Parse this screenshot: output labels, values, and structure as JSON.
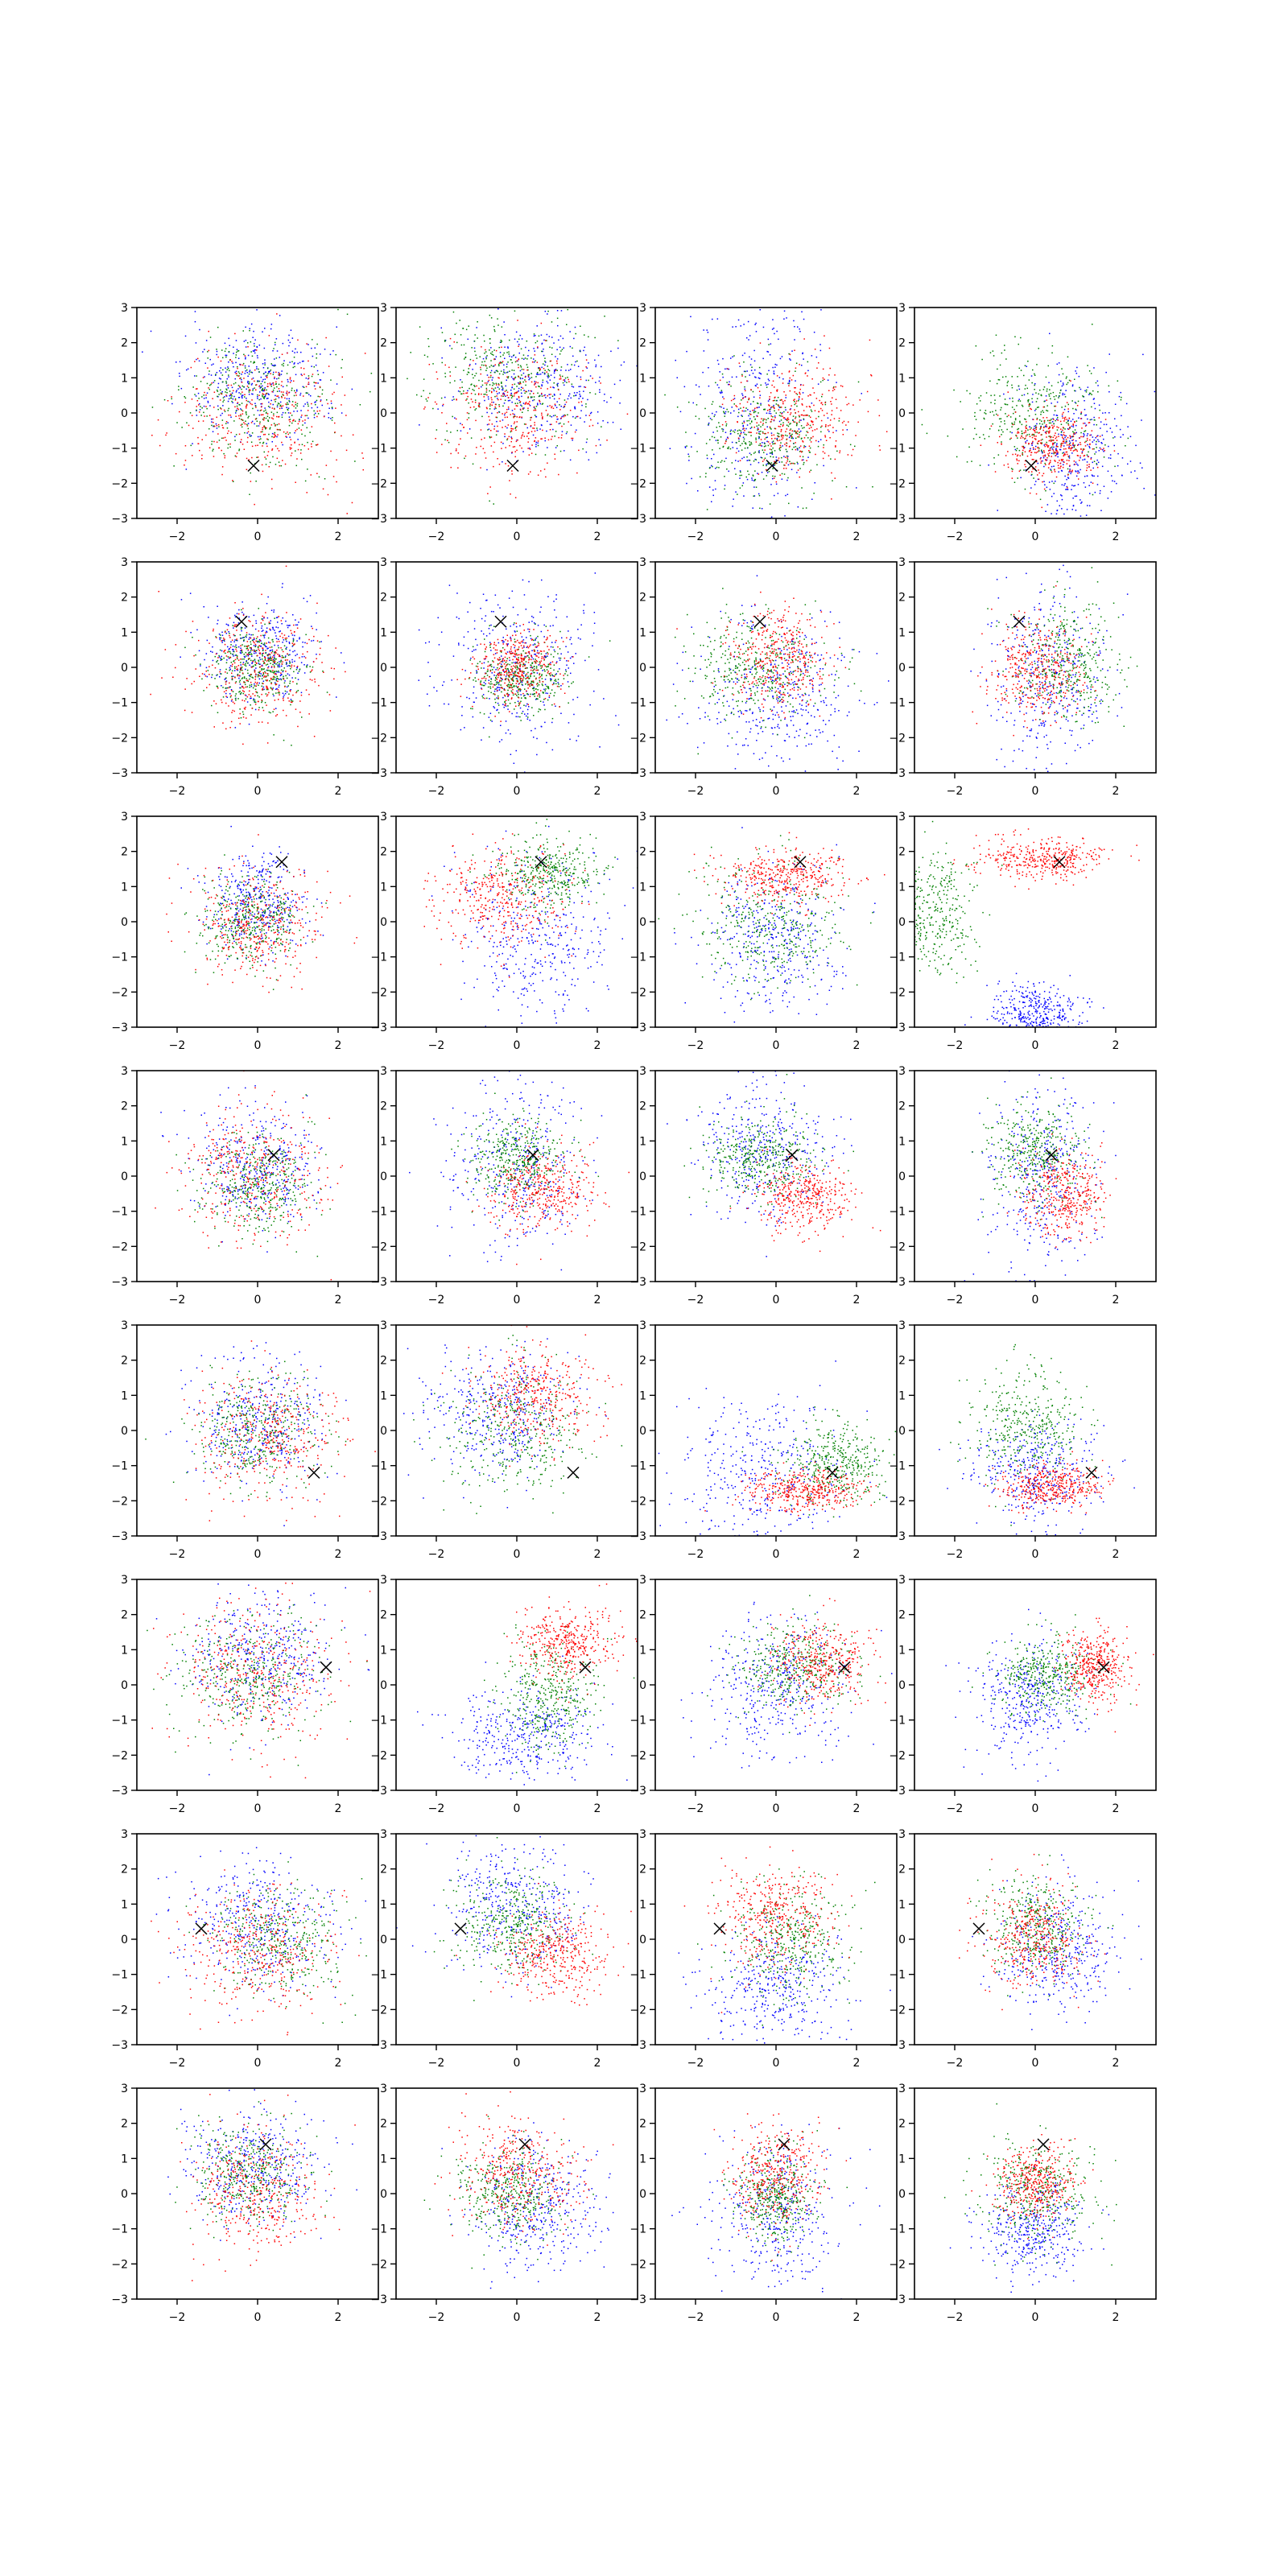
{
  "chart_data": {
    "type": "scatter",
    "layout": {
      "rows": 8,
      "cols": 4
    },
    "xlim": [
      -3,
      3
    ],
    "ylim": [
      -3,
      3
    ],
    "xticks": [
      -2,
      0,
      2
    ],
    "yticks": [
      -3,
      -2,
      -1,
      0,
      1,
      2,
      3
    ],
    "xtick_labels": [
      "−2",
      "0",
      "2"
    ],
    "ytick_labels": [
      "−3",
      "−2",
      "−1",
      "0",
      "1",
      "2",
      "3"
    ],
    "grid": false,
    "legend": "none",
    "series_colors": {
      "blue": "#0000ff",
      "green": "#008000",
      "red": "#ff0000"
    },
    "marker_color": "#000000",
    "marker_by_row": [
      [
        -0.1,
        -1.5
      ],
      [
        -0.4,
        1.3
      ],
      [
        0.6,
        1.7
      ],
      [
        0.4,
        0.6
      ],
      [
        1.4,
        -1.2
      ],
      [
        1.7,
        0.5
      ],
      [
        -1.4,
        0.3
      ],
      [
        0.2,
        1.4
      ]
    ],
    "subplots": [
      {
        "row": 0,
        "col": 0,
        "clusters": {
          "blue": [
            0,
            0.8,
            0.9,
            0.8
          ],
          "green": [
            0,
            0.3,
            0.9,
            0.9
          ],
          "red": [
            0.2,
            0,
            1.0,
            1.0
          ]
        }
      },
      {
        "row": 0,
        "col": 1,
        "clusters": {
          "blue": [
            0.5,
            0.8,
            1.0,
            1.0
          ],
          "green": [
            -0.3,
            1.1,
            1.0,
            0.9
          ],
          "red": [
            0,
            0,
            0.9,
            0.9
          ]
        }
      },
      {
        "row": 0,
        "col": 2,
        "clusters": {
          "blue": [
            -0.5,
            0,
            0.9,
            1.6
          ],
          "green": [
            -0.3,
            -0.6,
            0.8,
            0.8
          ],
          "red": [
            0.5,
            -0.2,
            0.8,
            0.8
          ]
        }
      },
      {
        "row": 0,
        "col": 3,
        "clusters": {
          "blue": [
            1.0,
            -1.0,
            0.7,
            1.1
          ],
          "green": [
            0,
            0,
            0.9,
            0.9
          ],
          "red": [
            0.4,
            -0.9,
            0.6,
            0.5
          ]
        }
      },
      {
        "row": 1,
        "col": 0,
        "clusters": {
          "blue": [
            0,
            0.4,
            0.7,
            0.7
          ],
          "green": [
            0,
            0,
            0.6,
            0.6
          ],
          "red": [
            0,
            0,
            0.8,
            0.8
          ]
        }
      },
      {
        "row": 1,
        "col": 1,
        "clusters": {
          "blue": [
            0,
            0,
            1.0,
            1.2
          ],
          "green": [
            0,
            -0.3,
            0.6,
            0.5
          ],
          "red": [
            0,
            0,
            0.5,
            0.5
          ]
        }
      },
      {
        "row": 1,
        "col": 2,
        "clusters": {
          "blue": [
            0,
            -0.8,
            0.9,
            1.1
          ],
          "green": [
            -0.5,
            0,
            0.9,
            0.7
          ],
          "red": [
            0.1,
            0.3,
            0.6,
            0.7
          ]
        }
      },
      {
        "row": 1,
        "col": 3,
        "clusters": {
          "blue": [
            0.3,
            -0.4,
            0.7,
            1.3
          ],
          "green": [
            0.8,
            0.1,
            0.7,
            0.8
          ],
          "red": [
            0,
            0,
            0.6,
            0.7
          ]
        }
      },
      {
        "row": 2,
        "col": 0,
        "clusters": {
          "blue": [
            0,
            0.5,
            0.6,
            0.7
          ],
          "green": [
            -0.2,
            0,
            0.6,
            0.6
          ],
          "red": [
            0,
            0,
            0.8,
            0.8
          ]
        }
      },
      {
        "row": 2,
        "col": 1,
        "clusters": {
          "blue": [
            0.5,
            -0.4,
            0.9,
            1.2
          ],
          "green": [
            0.8,
            1.4,
            0.7,
            0.5
          ],
          "red": [
            -0.4,
            0.7,
            0.8,
            0.7
          ]
        }
      },
      {
        "row": 2,
        "col": 2,
        "clusters": {
          "blue": [
            0,
            -0.6,
            0.8,
            1.0
          ],
          "green": [
            -0.2,
            0,
            0.9,
            0.9
          ],
          "red": [
            0.3,
            1.3,
            0.8,
            0.4
          ]
        }
      },
      {
        "row": 2,
        "col": 3,
        "clusters": {
          "blue": [
            0,
            -2.6,
            0.6,
            0.4
          ],
          "green": [
            -2.6,
            0.2,
            0.6,
            0.9
          ],
          "red": [
            0.2,
            1.8,
            0.8,
            0.3
          ]
        }
      },
      {
        "row": 3,
        "col": 0,
        "clusters": {
          "blue": [
            0,
            0.3,
            0.8,
            0.8
          ],
          "green": [
            0,
            -0.3,
            0.7,
            0.7
          ],
          "red": [
            0,
            0,
            0.9,
            0.9
          ]
        }
      },
      {
        "row": 3,
        "col": 1,
        "clusters": {
          "blue": [
            0,
            0.3,
            0.8,
            1.3
          ],
          "green": [
            0,
            0.5,
            0.6,
            0.6
          ],
          "red": [
            0.6,
            -0.4,
            0.7,
            0.6
          ]
        }
      },
      {
        "row": 3,
        "col": 2,
        "clusters": {
          "blue": [
            -0.3,
            0.8,
            0.8,
            1.0
          ],
          "green": [
            -0.4,
            0.6,
            0.7,
            0.6
          ],
          "red": [
            0.7,
            -0.6,
            0.6,
            0.5
          ]
        }
      },
      {
        "row": 3,
        "col": 3,
        "clusters": {
          "blue": [
            0.2,
            0,
            0.7,
            1.3
          ],
          "green": [
            0,
            0.6,
            0.6,
            0.7
          ],
          "red": [
            0.7,
            -0.5,
            0.5,
            0.6
          ]
        }
      },
      {
        "row": 4,
        "col": 0,
        "clusters": {
          "blue": [
            0,
            0.3,
            0.8,
            0.9
          ],
          "green": [
            0,
            0,
            0.8,
            0.8
          ],
          "red": [
            0.3,
            -0.2,
            0.9,
            0.9
          ]
        }
      },
      {
        "row": 4,
        "col": 1,
        "clusters": {
          "blue": [
            -0.5,
            0.5,
            0.9,
            0.9
          ],
          "green": [
            0,
            0,
            0.9,
            0.9
          ],
          "red": [
            0.5,
            1.0,
            0.8,
            0.7
          ]
        }
      },
      {
        "row": 4,
        "col": 2,
        "clusters": {
          "blue": [
            -0.3,
            -1.2,
            1.0,
            1.1
          ],
          "green": [
            1.5,
            -0.9,
            0.6,
            0.6
          ],
          "red": [
            0.7,
            -1.7,
            0.7,
            0.3
          ]
        }
      },
      {
        "row": 4,
        "col": 3,
        "clusters": {
          "blue": [
            0,
            -1.2,
            0.8,
            0.7
          ],
          "green": [
            -0.2,
            0.1,
            0.7,
            0.8
          ],
          "red": [
            0.4,
            -1.6,
            0.6,
            0.3
          ]
        }
      },
      {
        "row": 5,
        "col": 0,
        "clusters": {
          "blue": [
            0,
            0.8,
            0.9,
            0.9
          ],
          "green": [
            -0.2,
            0.3,
            0.9,
            0.9
          ],
          "red": [
            0,
            0.3,
            1.0,
            1.0
          ]
        }
      },
      {
        "row": 5,
        "col": 1,
        "clusters": {
          "blue": [
            0.2,
            -1.5,
            0.9,
            0.7
          ],
          "green": [
            0.8,
            -0.3,
            0.6,
            0.8
          ],
          "red": [
            1.2,
            1.2,
            0.6,
            0.5
          ]
        }
      },
      {
        "row": 5,
        "col": 2,
        "clusters": {
          "blue": [
            0,
            0,
            0.9,
            1.0
          ],
          "green": [
            0.5,
            0.5,
            0.7,
            0.6
          ],
          "red": [
            1.2,
            0.6,
            0.6,
            0.6
          ]
        }
      },
      {
        "row": 5,
        "col": 3,
        "clusters": {
          "blue": [
            -0.2,
            -0.4,
            0.7,
            0.9
          ],
          "green": [
            0.3,
            0.3,
            0.6,
            0.5
          ],
          "red": [
            1.5,
            0.5,
            0.4,
            0.5
          ]
        }
      },
      {
        "row": 6,
        "col": 0,
        "clusters": {
          "blue": [
            0,
            0.4,
            1.0,
            0.9
          ],
          "green": [
            0.5,
            0,
            0.8,
            0.8
          ],
          "red": [
            0,
            -0.3,
            1.0,
            0.9
          ]
        }
      },
      {
        "row": 6,
        "col": 1,
        "clusters": {
          "blue": [
            0,
            1.0,
            0.9,
            0.9
          ],
          "green": [
            -0.1,
            0.4,
            0.7,
            0.7
          ],
          "red": [
            0.9,
            -0.4,
            0.7,
            0.6
          ]
        }
      },
      {
        "row": 6,
        "col": 2,
        "clusters": {
          "blue": [
            0,
            -1.4,
            0.8,
            0.9
          ],
          "green": [
            0.4,
            0,
            0.7,
            0.8
          ],
          "red": [
            0,
            0.6,
            0.7,
            0.7
          ]
        }
      },
      {
        "row": 6,
        "col": 3,
        "clusters": {
          "blue": [
            0.6,
            -0.3,
            0.8,
            0.9
          ],
          "green": [
            0,
            0.4,
            0.6,
            0.7
          ],
          "red": [
            0,
            0,
            0.6,
            0.7
          ]
        }
      },
      {
        "row": 7,
        "col": 0,
        "clusters": {
          "blue": [
            0,
            0.7,
            0.8,
            0.8
          ],
          "green": [
            -0.2,
            0.6,
            0.7,
            0.7
          ],
          "red": [
            0,
            0,
            0.8,
            0.9
          ]
        }
      },
      {
        "row": 7,
        "col": 1,
        "clusters": {
          "blue": [
            0.5,
            -0.4,
            0.8,
            0.9
          ],
          "green": [
            -0.2,
            0,
            0.7,
            0.7
          ],
          "red": [
            0,
            0.6,
            0.8,
            0.8
          ]
        }
      },
      {
        "row": 7,
        "col": 2,
        "clusters": {
          "blue": [
            0,
            -0.6,
            0.8,
            1.1
          ],
          "green": [
            0,
            -0.1,
            0.5,
            0.6
          ],
          "red": [
            0,
            0.5,
            0.6,
            0.7
          ]
        }
      },
      {
        "row": 7,
        "col": 3,
        "clusters": {
          "blue": [
            0,
            -1.0,
            0.6,
            0.7
          ],
          "green": [
            0,
            0,
            0.7,
            0.8
          ],
          "red": [
            0,
            0.3,
            0.5,
            0.5
          ]
        }
      }
    ]
  }
}
